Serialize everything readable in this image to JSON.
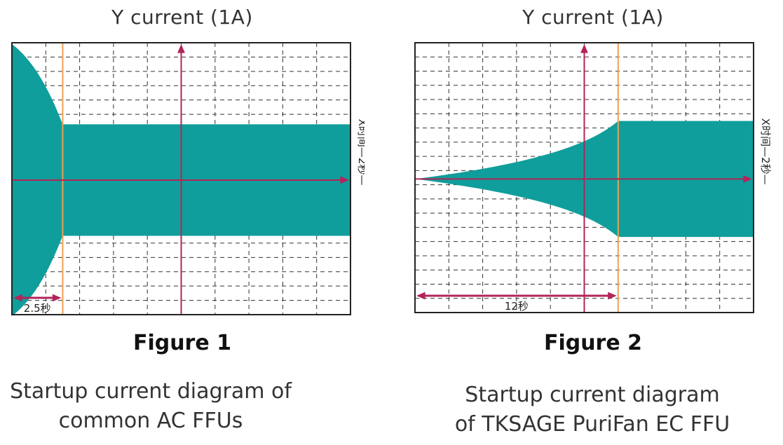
{
  "chart_data": [
    {
      "type": "area",
      "title": "Y current (1A)",
      "figure_label": "Figure 1",
      "caption_lines": [
        "Startup current diagram of",
        "common AC FFUs"
      ],
      "x_axis_label": "X时间—2秒—",
      "time_marker_label": "2.5秒",
      "transition_fraction": 0.15,
      "peak_amplitude_fraction": 1.0,
      "steady_amplitude_fraction": 0.41,
      "grid": true,
      "colors": {
        "fill": "#0f9e9b",
        "axis": "#b3245a",
        "marker": "#f0a050"
      }
    },
    {
      "type": "area",
      "title": "Y current (1A)",
      "figure_label": "Figure 2",
      "caption_lines": [
        "Startup current diagram",
        "of TKSAGE PuriFan EC FFU"
      ],
      "x_axis_label": "X时间—2秒—",
      "time_marker_label": "12秒",
      "transition_fraction": 0.6,
      "peak_amplitude_fraction": 0.43,
      "steady_amplitude_fraction": 0.43,
      "grid": true,
      "colors": {
        "fill": "#0f9e9b",
        "axis": "#b3245a",
        "marker": "#f0a050"
      }
    }
  ]
}
